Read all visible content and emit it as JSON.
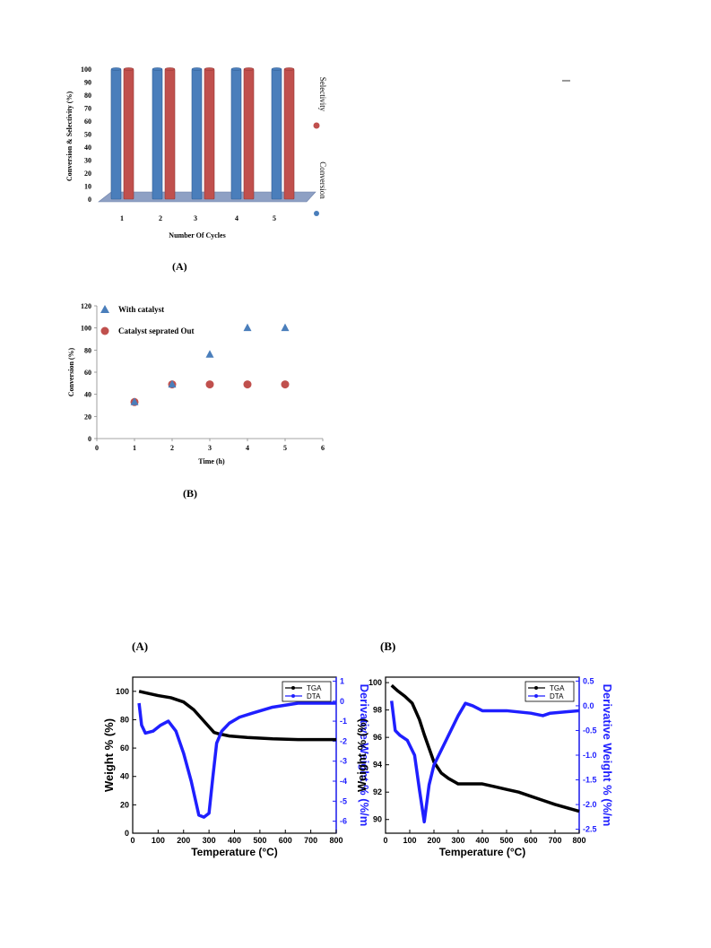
{
  "panels": {
    "top_a": "(A)",
    "top_b": "(B)",
    "bottom_a": "(A)",
    "bottom_b": "(B)"
  },
  "colors": {
    "conversion": "#4a7ebb",
    "selectivity": "#c0504d",
    "tga": "#000000",
    "dta": "#1f1fff",
    "floor": "#8ea0c4"
  },
  "chart_data": [
    {
      "type": "bar",
      "title": "",
      "xlabel": "Number Of Cycles",
      "ylabel": "Conversion & Selectivity  (%)",
      "categories": [
        "1",
        "2",
        "3",
        "4",
        "5"
      ],
      "yticks": [
        "0",
        "10",
        "20",
        "30",
        "40",
        "50",
        "60",
        "70",
        "80",
        "90",
        "100"
      ],
      "ylim": [
        0,
        100
      ],
      "legend_position": "right",
      "series": [
        {
          "name": "Conversion",
          "values": [
            100,
            100,
            100,
            100,
            100
          ]
        },
        {
          "name": "Selectivity",
          "values": [
            100,
            100,
            100,
            100,
            100
          ]
        }
      ]
    },
    {
      "type": "scatter",
      "title": "",
      "xlabel": "Time (h)",
      "ylabel": "Conversion (%)",
      "xlim": [
        0,
        6
      ],
      "ylim": [
        0,
        120
      ],
      "xticks": [
        "0",
        "1",
        "2",
        "3",
        "4",
        "5",
        "6"
      ],
      "yticks": [
        "0",
        "20",
        "40",
        "60",
        "80",
        "100",
        "120"
      ],
      "legend_position": "top-left",
      "series": [
        {
          "name": "With catalyst",
          "marker": "triangle",
          "x": [
            1,
            2,
            3,
            4,
            5
          ],
          "y": [
            33,
            49,
            76,
            100,
            100
          ]
        },
        {
          "name": "Catalyst seprated Out",
          "marker": "circle",
          "x": [
            1,
            2,
            3,
            4,
            5
          ],
          "y": [
            33,
            49,
            49,
            49,
            49
          ]
        }
      ]
    },
    {
      "type": "line",
      "title": "",
      "xlabel": "Temperature (°C)",
      "ylabel": "Weight % (%)",
      "y2label": "Derivative Weight % (%/m",
      "xlim": [
        0,
        800
      ],
      "ylim": [
        0,
        110
      ],
      "y2lim": [
        -6.6,
        1.2
      ],
      "xticks": [
        "0",
        "100",
        "200",
        "300",
        "400",
        "500",
        "600",
        "700",
        "800"
      ],
      "yticks": [
        "0",
        "20",
        "40",
        "60",
        "80",
        "100"
      ],
      "y2ticks": [
        "-6",
        "-5",
        "-4",
        "-3",
        "-2",
        "-1",
        "0",
        "1"
      ],
      "legend_position": "top-right",
      "series": [
        {
          "name": "TGA",
          "axis": "left",
          "x": [
            25,
            50,
            100,
            150,
            200,
            240,
            270,
            300,
            320,
            340,
            380,
            450,
            550,
            650,
            800
          ],
          "y": [
            100,
            99,
            97,
            95.5,
            92.5,
            87,
            81,
            75,
            71,
            70,
            68.5,
            67.5,
            66.5,
            66,
            66
          ]
        },
        {
          "name": "DTA",
          "axis": "right",
          "x": [
            25,
            35,
            50,
            80,
            110,
            140,
            170,
            200,
            230,
            260,
            280,
            300,
            315,
            330,
            350,
            380,
            420,
            470,
            550,
            650,
            800
          ],
          "y": [
            -0.1,
            -1.2,
            -1.6,
            -1.5,
            -1.2,
            -1.0,
            -1.5,
            -2.6,
            -4.0,
            -5.7,
            -5.8,
            -5.6,
            -3.8,
            -2.1,
            -1.5,
            -1.1,
            -0.8,
            -0.6,
            -0.3,
            -0.1,
            -0.1
          ]
        }
      ]
    },
    {
      "type": "line",
      "title": "",
      "xlabel": "Temperature (°C)",
      "ylabel": "Weight % (%)",
      "y2label": "Derivative Weight % (%/m",
      "xlim": [
        0,
        800
      ],
      "ylim": [
        89,
        100.4
      ],
      "y2lim": [
        -2.58,
        0.58
      ],
      "xticks": [
        "0",
        "100",
        "200",
        "300",
        "400",
        "500",
        "600",
        "700",
        "800"
      ],
      "yticks": [
        "90",
        "92",
        "94",
        "96",
        "98",
        "100"
      ],
      "y2ticks": [
        "-2.5",
        "-2.0",
        "-1.5",
        "-1.0",
        "-0.5",
        "0.0",
        "0.5"
      ],
      "legend_position": "top-right",
      "series": [
        {
          "name": "TGA",
          "axis": "left",
          "x": [
            25,
            50,
            80,
            110,
            140,
            160,
            180,
            200,
            230,
            260,
            300,
            350,
            400,
            450,
            500,
            550,
            600,
            650,
            700,
            800
          ],
          "y": [
            99.8,
            99.4,
            99,
            98.5,
            97.3,
            96.2,
            95.2,
            94.2,
            93.4,
            93,
            92.6,
            92.6,
            92.6,
            92.4,
            92.2,
            92,
            91.7,
            91.4,
            91.1,
            90.6
          ]
        },
        {
          "name": "DTA",
          "axis": "right",
          "x": [
            25,
            40,
            60,
            90,
            120,
            140,
            160,
            180,
            200,
            250,
            300,
            330,
            360,
            400,
            450,
            500,
            600,
            650,
            680,
            800
          ],
          "y": [
            0.1,
            -0.5,
            -0.6,
            -0.7,
            -1.0,
            -1.7,
            -2.35,
            -1.6,
            -1.2,
            -0.7,
            -0.2,
            0.05,
            0.0,
            -0.1,
            -0.1,
            -0.1,
            -0.15,
            -0.2,
            -0.15,
            -0.1
          ]
        }
      ]
    }
  ]
}
